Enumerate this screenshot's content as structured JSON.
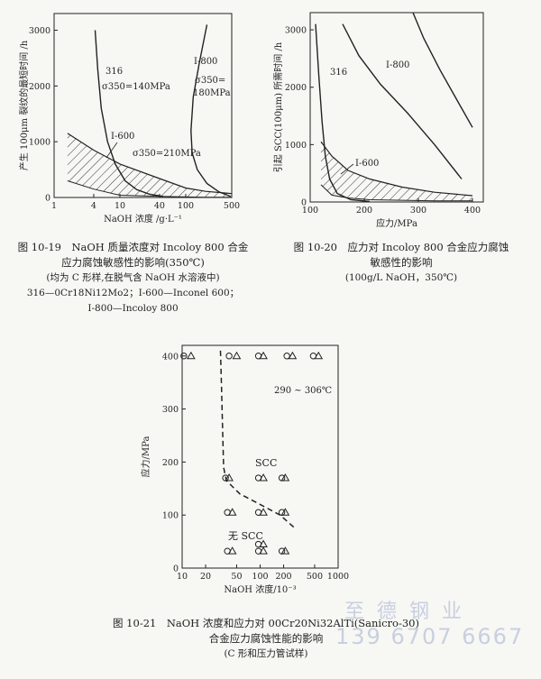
{
  "chart_data": [
    {
      "type": "line",
      "title": "图 10-19　NaOH 质量浓度对 Incoloy 800 合金",
      "xlabel": "NaOH 浓度 /g·L⁻¹",
      "ylabel": "产生 100μm 裂纹的最短时间 /h",
      "xscale": "log",
      "xlim": [
        1,
        500
      ],
      "ylim": [
        0,
        3300
      ],
      "x_ticks": [
        "1",
        "4",
        "10",
        "40",
        "100",
        "500"
      ],
      "y_ticks": [
        "0",
        "1000",
        "2000",
        "3000"
      ],
      "series": [
        {
          "name": "316",
          "x": [
            4.2,
            4.6,
            5.2,
            6.5,
            8.5,
            12,
            18,
            28,
            45
          ],
          "y": [
            3000,
            2300,
            1600,
            1000,
            600,
            300,
            140,
            60,
            20
          ]
        },
        {
          "name": "I-800",
          "x": [
            210,
            160,
            130,
            120,
            125,
            150,
            210,
            320,
            480
          ],
          "y": [
            3100,
            2400,
            1800,
            1200,
            800,
            500,
            250,
            100,
            20
          ]
        }
      ],
      "band": {
        "upper": {
          "x": [
            1.6,
            4,
            10,
            40,
            100,
            200,
            500
          ],
          "y": [
            1150,
            850,
            600,
            340,
            170,
            110,
            70
          ]
        },
        "lower": {
          "x": [
            1.6,
            4,
            10,
            40,
            100,
            200,
            500
          ],
          "y": [
            300,
            150,
            40,
            20,
            10,
            5,
            5
          ]
        }
      },
      "annotations": [
        "316",
        "σ350=140MPa",
        "I-800",
        "σ350=",
        "180MPa",
        "I-600",
        "σ350=210MPa"
      ],
      "caption": [
        "图 10-19　NaOH 质量浓度对 Incoloy 800 合金",
        "应力腐蚀敏感性的影响(350℃)",
        "(均为 C 形样,在脱气含 NaOH 水溶液中)",
        "316—0Cr18Ni12Mo2；I-600—Inconel 600；",
        "I-800—Incoloy 800"
      ]
    },
    {
      "type": "line",
      "title": "图 10-20　应力对 Incoloy 800 合金应力腐蚀",
      "xlabel": "应力/MPa",
      "ylabel": "引起 SCC(100μm) 所需时间 /h",
      "xlim": [
        100,
        420
      ],
      "ylim": [
        0,
        3300
      ],
      "x_ticks": [
        "100",
        "200",
        "300",
        "400"
      ],
      "y_ticks": [
        "0",
        "1000",
        "2000",
        "3000"
      ],
      "series": [
        {
          "name": "316",
          "x": [
            110,
            116,
            122,
            128,
            136,
            150,
            175,
            210
          ],
          "y": [
            3100,
            2200,
            1400,
            800,
            400,
            150,
            40,
            10
          ]
        },
        {
          "name": "I-800",
          "x": [
            160,
            190,
            230,
            280,
            330,
            380
          ],
          "y": [
            3100,
            2550,
            2050,
            1550,
            1000,
            400
          ]
        },
        {
          "name": "",
          "x": [
            290,
            310,
            340,
            370,
            400
          ],
          "y": [
            3300,
            2850,
            2300,
            1800,
            1300
          ]
        }
      ],
      "band": {
        "upper": {
          "x": [
            120,
            140,
            170,
            210,
            270,
            330,
            400
          ],
          "y": [
            1050,
            800,
            550,
            400,
            260,
            170,
            110
          ]
        },
        "lower": {
          "x": [
            120,
            140,
            170,
            210,
            270,
            330,
            400
          ],
          "y": [
            300,
            120,
            70,
            40,
            30,
            20,
            20
          ]
        }
      },
      "annotations": [
        "316",
        "I-800",
        "I-600"
      ],
      "caption": [
        "图 10-20　应力对 Incoloy 800 合金应力腐蚀",
        "敏感性的影响",
        "(100g/L NaOH，350℃)"
      ]
    },
    {
      "type": "scatter",
      "title": "图 10-21　NaOH 浓度和应力对 00Cr20Ni32AlTi(Sanicro-30)",
      "xlabel": "NaOH 浓度/10⁻³",
      "ylabel": "应力/MPa",
      "xscale": "log",
      "xlim": [
        10,
        1000
      ],
      "ylim": [
        0,
        420
      ],
      "x_ticks": [
        "10",
        "20",
        "50",
        "100",
        "200",
        "500",
        "1000"
      ],
      "y_ticks": [
        "0",
        "100",
        "200",
        "300",
        "400"
      ],
      "series": [
        {
          "name": "○",
          "x": [
            10.5,
            40,
            95,
            220,
            480,
            36,
            95,
            190,
            38,
            95,
            190,
            38,
            95,
            95,
            190
          ],
          "y": [
            400,
            400,
            400,
            400,
            400,
            170,
            170,
            170,
            105,
            105,
            105,
            32,
            32,
            45,
            32
          ]
        },
        {
          "name": "△",
          "x": [
            13,
            50,
            110,
            260,
            560,
            40,
            110,
            210,
            44,
            110,
            210,
            44,
            110,
            110,
            210
          ],
          "y": [
            400,
            400,
            400,
            400,
            400,
            170,
            170,
            170,
            105,
            105,
            105,
            32,
            32,
            45,
            32
          ]
        }
      ],
      "boundary": {
        "x": [
          31,
          32,
          33,
          34,
          37,
          55,
          100,
          180,
          280
        ],
        "y": [
          410,
          340,
          260,
          190,
          165,
          140,
          120,
          100,
          75
        ]
      },
      "annotations": [
        "290 ~ 306℃",
        "SCC",
        "无 SCC"
      ],
      "caption": [
        "图 10-21　NaOH 浓度和应力对 00Cr20Ni32AlTi(Sanicro-30)",
        "合金应力腐蚀性能的影响",
        "(C 形和压力管试样)"
      ]
    }
  ],
  "watermark": {
    "line1": "至德钢业",
    "line2": "139 6707 6667"
  }
}
